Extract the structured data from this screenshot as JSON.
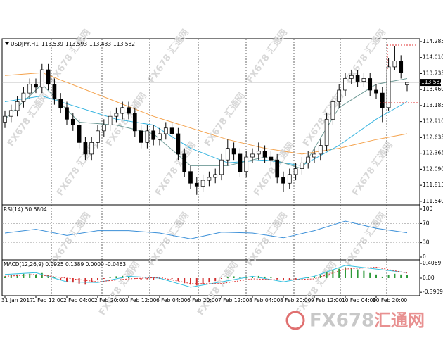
{
  "symbol": "USDJPY,H1",
  "watermark": "FX678 汇通网",
  "logo": {
    "brand": "FX678",
    "name": "汇通网"
  },
  "chart_data": [
    {
      "type": "candlestick",
      "up_color": "#ffffff",
      "down_color": "#000000",
      "open": [
        112.9,
        113,
        113.1,
        113.25,
        113.4,
        113.55,
        113.5,
        113.8,
        113.55,
        113.3,
        113.15,
        112.95,
        112.85,
        112.55,
        112.35,
        112.55,
        112.75,
        112.85,
        113,
        113.05,
        113.15,
        113.05,
        112.75,
        112.55,
        112.75,
        112.6,
        112.7,
        112.8,
        112.7,
        112.35,
        112.05,
        111.85,
        111.8,
        111.9,
        111.95,
        112,
        112.25,
        112.45,
        112.35,
        112.05,
        112.3,
        112.35,
        112.4,
        112.3,
        112.25,
        111.95,
        111.85,
        112,
        112.1,
        112.2,
        112.3,
        112.35,
        112.5,
        112.95,
        113.25,
        113.45,
        113.65,
        113.7,
        113.6,
        113.65,
        113.45,
        113.4,
        113.15,
        113.85,
        113.95,
        113.539
      ],
      "high": [
        113.1,
        113.2,
        113.35,
        113.5,
        113.65,
        113.65,
        113.9,
        113.9,
        113.65,
        113.4,
        113.25,
        113.05,
        112.95,
        112.65,
        112.65,
        112.85,
        112.95,
        113.1,
        113.15,
        113.25,
        113.25,
        113.15,
        112.85,
        112.85,
        112.85,
        112.8,
        112.9,
        112.9,
        112.8,
        112.45,
        112.15,
        111.95,
        112,
        112.05,
        112.1,
        112.35,
        112.6,
        112.55,
        112.45,
        112.4,
        112.45,
        112.55,
        112.5,
        112.4,
        112.35,
        112.05,
        112.1,
        112.2,
        112.3,
        112.4,
        112.45,
        112.6,
        113.05,
        113.35,
        113.55,
        113.75,
        113.8,
        113.8,
        113.75,
        113.75,
        113.55,
        113.5,
        114,
        114.2,
        114.05,
        113.593
      ],
      "low": [
        112.8,
        112.9,
        113,
        113.15,
        113.3,
        113.4,
        113.4,
        113.45,
        113.2,
        113.05,
        112.85,
        112.75,
        112.45,
        112.25,
        112.25,
        112.45,
        112.65,
        112.75,
        112.9,
        112.95,
        112.95,
        112.65,
        112.45,
        112.45,
        112.5,
        112.5,
        112.6,
        112.6,
        112.25,
        111.95,
        111.75,
        111.65,
        111.7,
        111.8,
        111.85,
        111.9,
        112.15,
        112.25,
        111.95,
        111.95,
        112.2,
        112.25,
        112.2,
        112.15,
        111.85,
        111.7,
        111.75,
        111.9,
        112,
        112.1,
        112.2,
        112.25,
        112.4,
        112.85,
        113.15,
        113.35,
        113.55,
        113.5,
        113.5,
        113.35,
        113.3,
        112.9,
        113.1,
        113.8,
        113.65,
        113.433
      ],
      "close": [
        113,
        113.1,
        113.25,
        113.4,
        113.55,
        113.5,
        113.8,
        113.55,
        113.3,
        113.15,
        112.95,
        112.85,
        112.55,
        112.35,
        112.55,
        112.75,
        112.85,
        113,
        113.05,
        113.15,
        113.05,
        112.75,
        112.55,
        112.75,
        112.6,
        112.7,
        112.8,
        112.7,
        112.35,
        112.05,
        111.85,
        111.8,
        111.9,
        111.95,
        112,
        112.25,
        112.45,
        112.35,
        112.05,
        112.3,
        112.35,
        112.4,
        112.3,
        112.25,
        111.95,
        111.85,
        112,
        112.1,
        112.2,
        112.3,
        112.35,
        112.5,
        112.95,
        113.25,
        113.45,
        113.65,
        113.7,
        113.6,
        113.65,
        113.45,
        113.4,
        113.15,
        113.85,
        113.95,
        113.75,
        113.582
      ],
      "series": [
        {
          "color": "#f4a24c",
          "x": [
            0,
            6,
            12,
            18,
            24,
            30,
            36,
            42,
            48,
            54,
            60,
            65
          ],
          "values": [
            113.7,
            113.75,
            113.5,
            113.25,
            113,
            112.8,
            112.6,
            112.45,
            112.35,
            112.45,
            112.6,
            112.7
          ]
        },
        {
          "color": "#35b4e0",
          "x": [
            0,
            6,
            12,
            18,
            24,
            30,
            36,
            42,
            48,
            54,
            60,
            65
          ],
          "values": [
            113.25,
            113.35,
            113.15,
            112.95,
            112.85,
            112.45,
            112.2,
            112.25,
            112.15,
            112.5,
            112.95,
            113.25
          ]
        },
        {
          "color": "#6f9a96",
          "x": [
            0,
            6,
            12,
            18,
            24,
            30,
            36,
            42,
            48,
            54,
            60,
            65
          ],
          "values": [
            112.95,
            113.55,
            112.9,
            112.85,
            112.7,
            112.15,
            112.15,
            112.3,
            112.1,
            113.15,
            113.55,
            113.65
          ]
        }
      ],
      "ylim": [
        111.49,
        114.333
      ],
      "yticks": [
        114.285,
        {
          "value": 114.01,
          "label": "114.010"
        },
        113.735,
        {
          "value": 113.46,
          "label": "113.460"
        },
        113.185,
        {
          "value": 112.91,
          "label": "112.910"
        },
        112.635,
        112.365,
        {
          "value": 112.09,
          "label": "112.090"
        },
        111.815,
        {
          "value": 111.54,
          "label": "111.540"
        }
      ],
      "xticks": [
        {
          "value": 0,
          "label": "31 Jan 2017"
        },
        {
          "value": 5,
          "label": "1 Feb 12:00"
        },
        {
          "value": 10,
          "label": "2 Feb 04:00"
        },
        {
          "value": 15,
          "label": "2 Feb 20:00"
        },
        {
          "value": 20,
          "label": "3 Feb 12:00"
        },
        {
          "value": 25,
          "label": "6 Feb 04:00"
        },
        {
          "value": 30,
          "label": "6 Feb 20:00"
        },
        {
          "value": 35,
          "label": "7 Feb 12:00"
        },
        {
          "value": 40,
          "label": "8 Feb 04:00"
        },
        {
          "value": 45,
          "label": "8 Feb 20:00"
        },
        {
          "value": 50,
          "label": "9 Feb 12:00"
        },
        {
          "value": 55,
          "label": "10 Feb 04:00"
        },
        {
          "value": 60,
          "label": "10 Feb 20:00"
        }
      ]
    },
    {
      "type": "rsi",
      "label": "RSI(14)",
      "color": "#3a8fd8",
      "x": [
        0,
        5,
        10,
        15,
        20,
        25,
        30,
        35,
        40,
        45,
        50,
        55,
        60,
        65
      ],
      "values": [
        50,
        58,
        45,
        55,
        55,
        50,
        38,
        52,
        50,
        40,
        55,
        75,
        60,
        50.6804
      ],
      "ylim": [
        -4.4,
        107.4
      ],
      "yticks": [
        100,
        70,
        30,
        0
      ]
    },
    {
      "type": "macd",
      "label": "MACD(12,26,9) 0.0925 0.1389 0.0000 -0.0463",
      "histogram": [
        0.05,
        0.08,
        0.1,
        0.12,
        0.12,
        0.1,
        0.14,
        0.08,
        0.02,
        -0.05,
        -0.1,
        -0.12,
        -0.15,
        -0.18,
        -0.12,
        -0.06,
        -0.02,
        0.03,
        0.05,
        0.06,
        0.04,
        -0.02,
        -0.05,
        -0.03,
        -0.04,
        -0.02,
        0,
        -0.02,
        -0.08,
        -0.14,
        -0.18,
        -0.2,
        -0.16,
        -0.12,
        -0.08,
        -0.02,
        0.04,
        0.05,
        0.02,
        0.04,
        0.05,
        0.06,
        0.04,
        0.02,
        -0.03,
        -0.06,
        -0.05,
        -0.03,
        0,
        0.03,
        0.06,
        0.1,
        0.16,
        0.22,
        0.26,
        0.3,
        0.28,
        0.24,
        0.2,
        0.14,
        0.1,
        0.04,
        0.08,
        0.12,
        0.1,
        0.0925
      ],
      "up_color": "#2e9a3a",
      "down_color": "#d03030",
      "main": {
        "color": "#35c0e0",
        "x": [
          0,
          5,
          10,
          15,
          20,
          25,
          30,
          35,
          40,
          45,
          50,
          55,
          60,
          65
        ],
        "values": [
          0.1,
          0.15,
          -0.1,
          -0.12,
          0.05,
          0,
          -0.25,
          -0.1,
          0.05,
          -0.1,
          0.05,
          0.35,
          0.25,
          0.15
        ]
      },
      "signal": {
        "color": "#e03030",
        "x": [
          0,
          5,
          10,
          15,
          20,
          25,
          30,
          35,
          40,
          45,
          50,
          55,
          60,
          65
        ],
        "values": [
          0.05,
          0.1,
          0,
          -0.1,
          -0.02,
          0.02,
          -0.15,
          -0.15,
          -0.02,
          -0.05,
          -0.02,
          0.25,
          0.3,
          0.14
        ]
      },
      "ylim": [
        -0.4845,
        0.4844
      ],
      "yticks": [
        0.4069,
        {
          "value": 0,
          "label": "0.00"
        },
        -0.3909
      ]
    }
  ]
}
